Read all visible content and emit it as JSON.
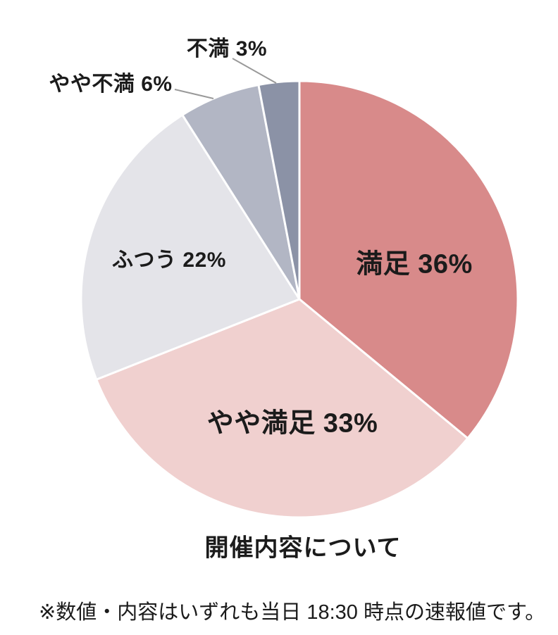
{
  "page": {
    "background": "#FFFFFF"
  },
  "theme": {
    "page_background": "#FFFFFF",
    "text_color": "#1B1B1B",
    "leader_line_color": "#999999",
    "slice_border_color": "#FFFFFF"
  },
  "chart_data": {
    "type": "pie",
    "title": "開催内容について",
    "note": "※数値・内容はいずれも当日 18:30 時点の速報値です。",
    "unit": "%",
    "start_angle_deg": 0,
    "direction": "clockwise",
    "legend_position": "none",
    "categories": [
      "満足",
      "やや満足",
      "ふつう",
      "やや不満",
      "不満"
    ],
    "values": [
      36,
      33,
      22,
      6,
      3
    ],
    "slices": [
      {
        "key": "satisfied",
        "label": "満足",
        "value": 36,
        "display": "満足 36%",
        "color": "#D88A8A",
        "label_placement": "inside"
      },
      {
        "key": "somewhat-satisfied",
        "label": "やや満足",
        "value": 33,
        "display": "やや満足 33%",
        "color": "#F0D0CF",
        "label_placement": "inside"
      },
      {
        "key": "neutral",
        "label": "ふつう",
        "value": 22,
        "display": "ふつう 22%",
        "color": "#E4E4E9",
        "label_placement": "inside"
      },
      {
        "key": "somewhat-dissatisfied",
        "label": "やや不満",
        "value": 6,
        "display": "やや不満 6%",
        "color": "#B2B6C4",
        "label_placement": "outside"
      },
      {
        "key": "dissatisfied",
        "label": "不満",
        "value": 3,
        "display": "不満 3%",
        "color": "#8B92A6",
        "label_placement": "outside"
      }
    ]
  }
}
